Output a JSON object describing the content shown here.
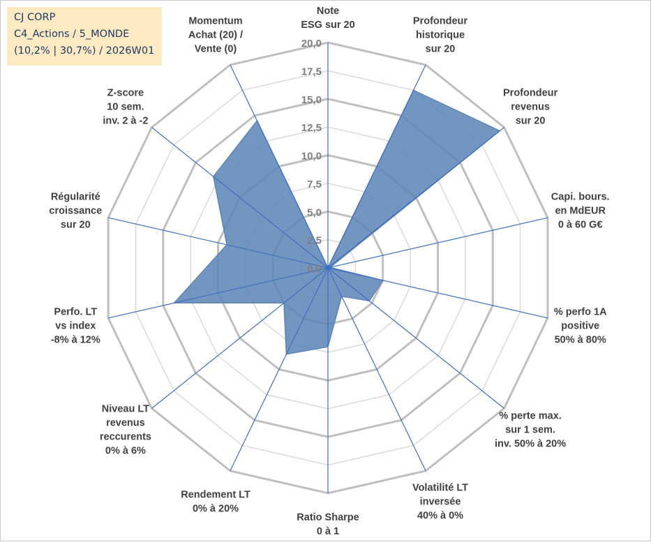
{
  "info_box": {
    "company": "CJ CORP",
    "category": "C4_Actions / 5_MONDE",
    "period": "(10,2% | 30,7%) / 2026W01"
  },
  "colors": {
    "fill": "#5b84b6",
    "axis": "#3f6fbf",
    "grid_major": "#bfbfbf",
    "grid_minor": "#d9d9d9",
    "info_bg": "#fde9c2",
    "info_text": "#1f3864"
  },
  "chart_data": {
    "type": "radar",
    "scale_min": 0,
    "scale_max": 20,
    "tick_step": 2.5,
    "tick_labels": [
      "0,0",
      "2,5",
      "5,0",
      "7,5",
      "10,0",
      "12,5",
      "15,0",
      "17,5",
      "20,0"
    ],
    "axes": [
      [
        "Note",
        "ESG sur 20"
      ],
      [
        "Profondeur",
        "historique",
        "sur 20"
      ],
      [
        "Profondeur",
        "revenus",
        "sur 20"
      ],
      [
        "Capi. bours.",
        "en MdEUR",
        "0 à 60 G€"
      ],
      [
        "% perfo 1A",
        "positive",
        "50% à 80%"
      ],
      [
        "% perte max.",
        "sur 1 sem.",
        "inv. 50% à 20%"
      ],
      [
        "Volatilité LT",
        "inversée",
        "40% à 0%"
      ],
      [
        "Ratio Sharpe",
        "0 à 1"
      ],
      [
        "Rendement LT",
        "0% à 20%"
      ],
      [
        "Niveau LT",
        "revenus",
        "reccurents",
        "0% à 6%"
      ],
      [
        "Perfo. LT",
        "vs index",
        "-8% à 12%"
      ],
      [
        "Régularité",
        "croissance",
        "sur 20"
      ],
      [
        "Z-score",
        "10 sem.",
        "inv. 2 à -2"
      ],
      [
        "Momentum",
        "Achat (20) /",
        "Vente (0)"
      ]
    ],
    "values": [
      0,
      17.5,
      19.5,
      0.2,
      5.0,
      4.7,
      2.8,
      7.0,
      8.5,
      5.0,
      14.0,
      9.2,
      13.0,
      14.5
    ],
    "grid": true,
    "legend": "none"
  }
}
